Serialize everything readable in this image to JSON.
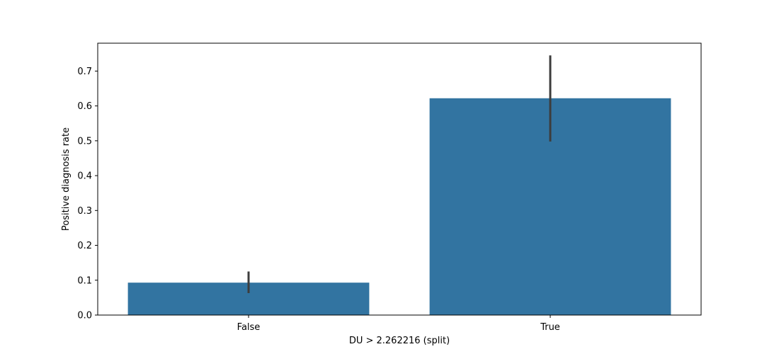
{
  "chart_data": {
    "type": "bar",
    "categories": [
      "False",
      "True"
    ],
    "values": [
      0.093,
      0.622
    ],
    "error_bars": [
      {
        "low": 0.063,
        "high": 0.125
      },
      {
        "low": 0.498,
        "high": 0.745
      }
    ],
    "title": "",
    "xlabel": "DU > 2.262216 (split)",
    "ylabel": "Positive diagnosis rate",
    "ylim": [
      0,
      0.78
    ],
    "yticks": [
      "0.0",
      "0.1",
      "0.2",
      "0.3",
      "0.4",
      "0.5",
      "0.6",
      "0.7"
    ],
    "grid": false,
    "bar_color": "#3274a1",
    "error_color": "#3d3d3d"
  }
}
